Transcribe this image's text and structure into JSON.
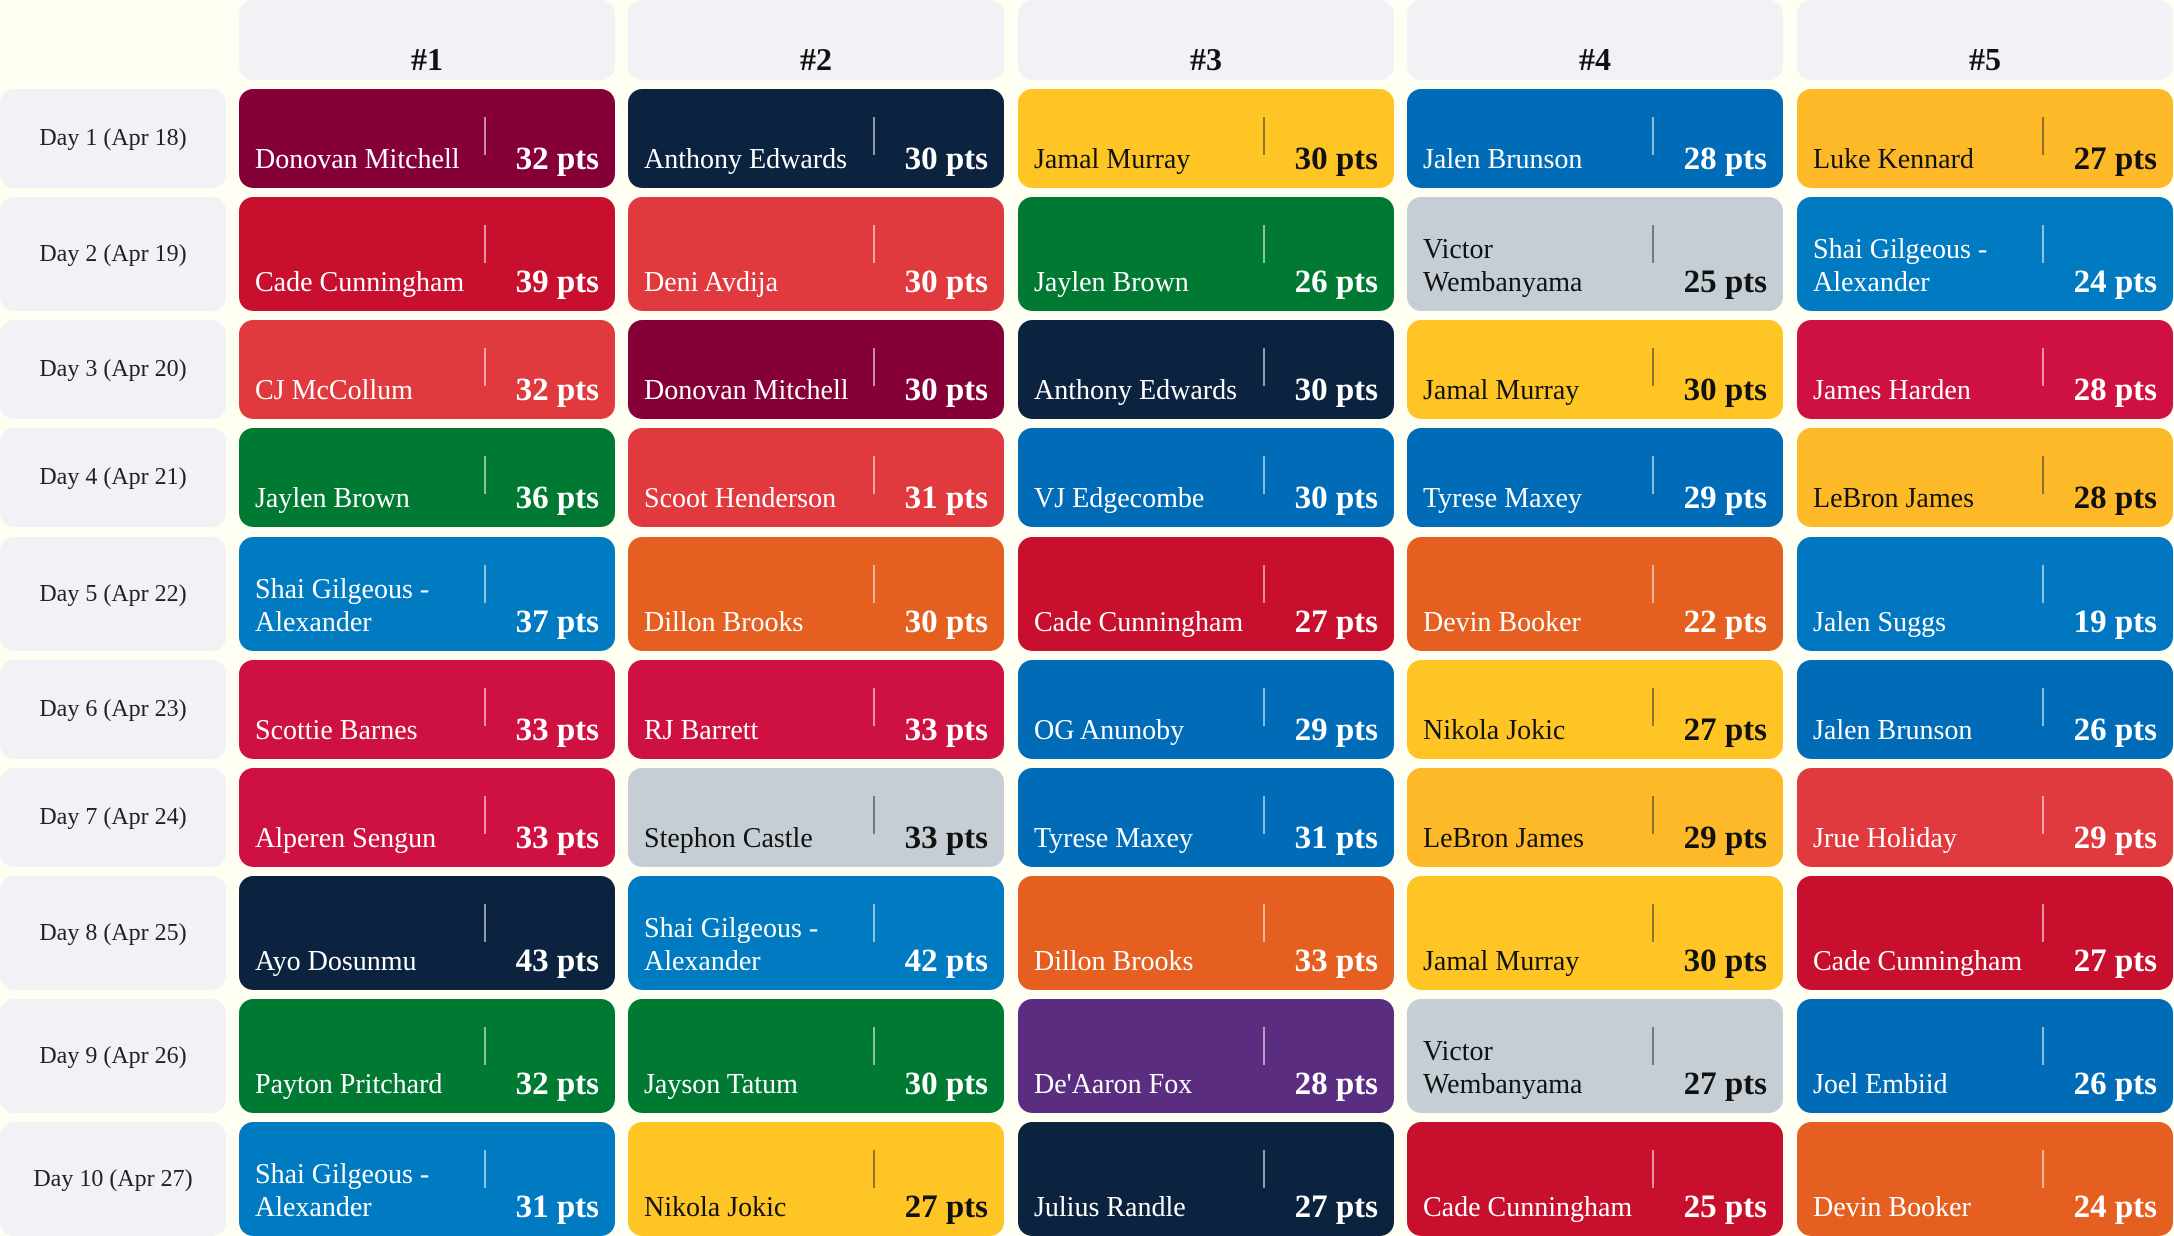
{
  "headers": [
    "#1",
    "#2",
    "#3",
    "#4",
    "#5"
  ],
  "days": [
    {
      "label": "Day 1 (Apr 18)",
      "entries": [
        {
          "name": "Donovan Mitchell",
          "pts": "32 pts",
          "color": "#860038"
        },
        {
          "name": "Anthony Edwards",
          "pts": "30 pts",
          "color": "#0c2340"
        },
        {
          "name": "Jamal Murray",
          "pts": "30 pts",
          "color": "#fec524"
        },
        {
          "name": "Jalen Brunson",
          "pts": "28 pts",
          "color": "#006bb6"
        },
        {
          "name": "Luke Kennard",
          "pts": "27 pts",
          "color": "#fdb927"
        }
      ]
    },
    {
      "label": "Day 2 (Apr 19)",
      "entries": [
        {
          "name": "Cade Cunningham",
          "pts": "39 pts",
          "color": "#c8102e"
        },
        {
          "name": "Deni Avdija",
          "pts": "30 pts",
          "color": "#e03a3e"
        },
        {
          "name": "Jaylen Brown",
          "pts": "26 pts",
          "color": "#007a33"
        },
        {
          "name": "Victor Wembanyama",
          "pts": "25 pts",
          "color": "#c4ced4"
        },
        {
          "name": "Shai Gilgeous - Alexander",
          "pts": "24 pts",
          "color": "#007ac1"
        }
      ]
    },
    {
      "label": "Day 3 (Apr 20)",
      "entries": [
        {
          "name": "CJ McCollum",
          "pts": "32 pts",
          "color": "#e03a3e"
        },
        {
          "name": "Donovan Mitchell",
          "pts": "30 pts",
          "color": "#860038"
        },
        {
          "name": "Anthony Edwards",
          "pts": "30 pts",
          "color": "#0c2340"
        },
        {
          "name": "Jamal Murray",
          "pts": "30 pts",
          "color": "#fec524"
        },
        {
          "name": "James Harden",
          "pts": "28 pts",
          "color": "#ce1141"
        }
      ]
    },
    {
      "label": "Day 4 (Apr 21)",
      "entries": [
        {
          "name": "Jaylen Brown",
          "pts": "36 pts",
          "color": "#007a33"
        },
        {
          "name": "Scoot Henderson",
          "pts": "31 pts",
          "color": "#e03a3e"
        },
        {
          "name": "VJ Edgecombe",
          "pts": "30 pts",
          "color": "#006bb6"
        },
        {
          "name": "Tyrese Maxey",
          "pts": "29 pts",
          "color": "#006bb6"
        },
        {
          "name": "LeBron James",
          "pts": "28 pts",
          "color": "#fdb927"
        }
      ]
    },
    {
      "label": "Day 5 (Apr 22)",
      "entries": [
        {
          "name": "Shai Gilgeous - Alexander",
          "pts": "37 pts",
          "color": "#007ac1"
        },
        {
          "name": "Dillon Brooks",
          "pts": "30 pts",
          "color": "#e56020"
        },
        {
          "name": "Cade Cunningham",
          "pts": "27 pts",
          "color": "#c8102e"
        },
        {
          "name": "Devin Booker",
          "pts": "22 pts",
          "color": "#e56020"
        },
        {
          "name": "Jalen Suggs",
          "pts": "19 pts",
          "color": "#0077c0"
        }
      ]
    },
    {
      "label": "Day 6 (Apr 23)",
      "entries": [
        {
          "name": "Scottie Barnes",
          "pts": "33 pts",
          "color": "#ce1141"
        },
        {
          "name": "RJ Barrett",
          "pts": "33 pts",
          "color": "#ce1141"
        },
        {
          "name": "OG Anunoby",
          "pts": "29 pts",
          "color": "#006bb6"
        },
        {
          "name": "Nikola Jokic",
          "pts": "27 pts",
          "color": "#fec524"
        },
        {
          "name": "Jalen Brunson",
          "pts": "26 pts",
          "color": "#006bb6"
        }
      ]
    },
    {
      "label": "Day 7 (Apr 24)",
      "entries": [
        {
          "name": "Alperen Sengun",
          "pts": "33 pts",
          "color": "#ce1141"
        },
        {
          "name": "Stephon Castle",
          "pts": "33 pts",
          "color": "#c4ced4"
        },
        {
          "name": "Tyrese Maxey",
          "pts": "31 pts",
          "color": "#006bb6"
        },
        {
          "name": "LeBron James",
          "pts": "29 pts",
          "color": "#fdb927"
        },
        {
          "name": "Jrue Holiday",
          "pts": "29 pts",
          "color": "#e03a3e"
        }
      ]
    },
    {
      "label": "Day 8 (Apr 25)",
      "entries": [
        {
          "name": "Ayo Dosunmu",
          "pts": "43 pts",
          "color": "#0c2340"
        },
        {
          "name": "Shai Gilgeous - Alexander",
          "pts": "42 pts",
          "color": "#007ac1"
        },
        {
          "name": "Dillon Brooks",
          "pts": "33 pts",
          "color": "#e56020"
        },
        {
          "name": "Jamal Murray",
          "pts": "30 pts",
          "color": "#fec524"
        },
        {
          "name": "Cade Cunningham",
          "pts": "27 pts",
          "color": "#c8102e"
        }
      ]
    },
    {
      "label": "Day 9 (Apr 26)",
      "entries": [
        {
          "name": "Payton Pritchard",
          "pts": "32 pts",
          "color": "#007a33"
        },
        {
          "name": "Jayson Tatum",
          "pts": "30 pts",
          "color": "#007a33"
        },
        {
          "name": "De'Aaron Fox",
          "pts": "28 pts",
          "color": "#5a2d81"
        },
        {
          "name": "Victor Wembanyama",
          "pts": "27 pts",
          "color": "#c4ced4"
        },
        {
          "name": "Joel Embiid",
          "pts": "26 pts",
          "color": "#006bb6"
        }
      ]
    },
    {
      "label": "Day 10 (Apr 27)",
      "entries": [
        {
          "name": "Shai Gilgeous - Alexander",
          "pts": "31 pts",
          "color": "#007ac1"
        },
        {
          "name": "Nikola Jokic",
          "pts": "27 pts",
          "color": "#fec524"
        },
        {
          "name": "Julius Randle",
          "pts": "27 pts",
          "color": "#0c2340"
        },
        {
          "name": "Cade Cunningham",
          "pts": "25 pts",
          "color": "#c8102e"
        },
        {
          "name": "Devin Booker",
          "pts": "24 pts",
          "color": "#e56020"
        }
      ]
    }
  ]
}
